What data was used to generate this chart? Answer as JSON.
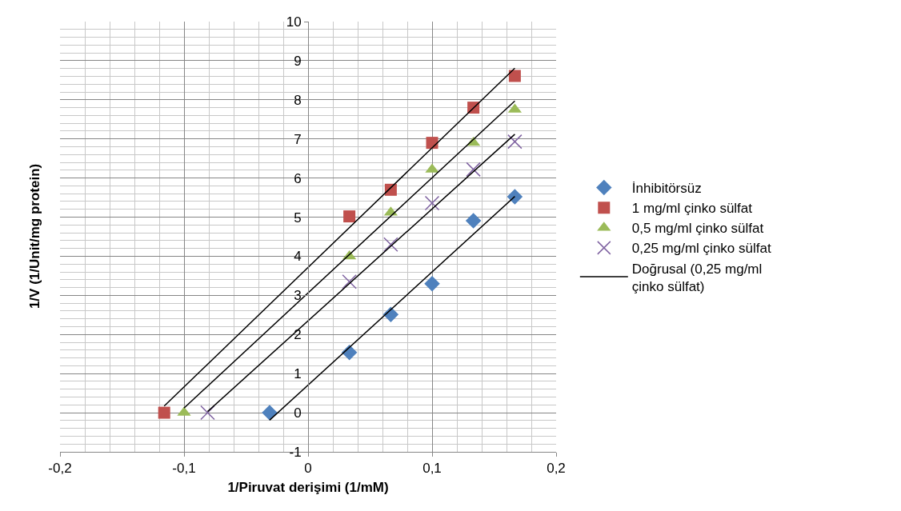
{
  "chart_data": {
    "type": "scatter",
    "xlabel": "1/Piruvat derişimi (1/mM)",
    "ylabel": "1/V (1/Unit/mg protein)",
    "series": [
      {
        "name": "İnhibitörsüz",
        "color": "#4f81bd",
        "marker": "diamond",
        "x": [
          -0.031,
          0.0333,
          0.0667,
          0.1,
          0.1333,
          0.1667
        ],
        "values": [
          0,
          1.54,
          2.51,
          3.3,
          4.91,
          5.52
        ]
      },
      {
        "name": "1 mg/ml çinko sülfat",
        "color": "#c0504d",
        "marker": "square",
        "x": [
          -0.116,
          0.0333,
          0.0667,
          0.1,
          0.1333,
          0.1667
        ],
        "values": [
          0,
          5.02,
          5.7,
          6.9,
          7.8,
          8.61
        ]
      },
      {
        "name": "0,5 mg/ml çinko sülfat",
        "color": "#9bbb59",
        "marker": "triangle",
        "x": [
          -0.1,
          0.0333,
          0.0667,
          0.1,
          0.1333,
          0.1667
        ],
        "values": [
          0,
          4.0,
          5.12,
          6.22,
          6.9,
          7.75
        ]
      },
      {
        "name": "0,25 mg/ml çinko sülfat",
        "color": "#8064a2",
        "marker": "cross",
        "x": [
          -0.081,
          0.0333,
          0.0667,
          0.1,
          0.1333,
          0.1667
        ],
        "values": [
          0,
          3.35,
          4.3,
          5.36,
          6.22,
          6.93
        ]
      },
      {
        "name": "Doğrusal (0,25 mg/ml çinko sülfat)",
        "type": "line",
        "color": "#000000",
        "x": [
          -0.081,
          0.1667
        ],
        "values": [
          0.03,
          7.12
        ]
      },
      {
        "type": "line",
        "color": "#000000",
        "x": [
          -0.116,
          0.1667
        ],
        "values": [
          0.17,
          8.81
        ]
      },
      {
        "type": "line",
        "color": "#000000",
        "x": [
          -0.1,
          0.1667
        ],
        "values": [
          0.12,
          7.97
        ]
      },
      {
        "type": "line",
        "color": "#000000",
        "x": [
          -0.031,
          0.1667
        ],
        "values": [
          -0.19,
          5.53
        ]
      }
    ],
    "xlim": [
      -0.2,
      0.2
    ],
    "xticks": [
      {
        "value": -0.2,
        "label": "-0,2"
      },
      {
        "value": -0.1,
        "label": "-0,1"
      },
      {
        "value": 0,
        "label": "0"
      },
      {
        "value": 0.1,
        "label": "0,1"
      },
      {
        "value": 0.2,
        "label": "0,2"
      }
    ],
    "ylim": [
      -1,
      10
    ],
    "yticks": [
      -1,
      0,
      1,
      2,
      3,
      4,
      5,
      6,
      7,
      8,
      9,
      10
    ],
    "grid": true,
    "legend": "right"
  }
}
